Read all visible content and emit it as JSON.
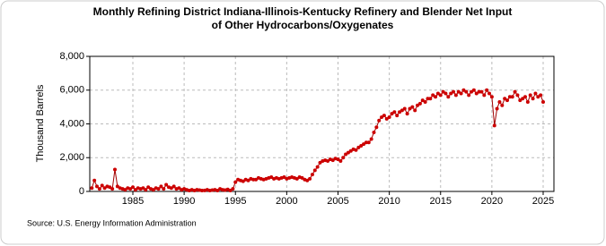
{
  "chart_data": {
    "type": "line",
    "title": "Monthly Refining District Indiana-Illinois-Kentucky Refinery and Blender Net Input of Other Hydrocarbons/Oxygenates",
    "y_label": "Thousand Barrels",
    "source": "Source: U.S. Energy Information Administration",
    "color": "#cc0000",
    "grid": true,
    "xlim": [
      1980.8,
      2026.05
    ],
    "xticks": [
      1985,
      1990,
      1995,
      2000,
      2005,
      2010,
      2015,
      2020,
      2025
    ],
    "ylim": [
      0,
      8000
    ],
    "yticks": [
      0,
      {
        "value": 2000,
        "label": "2,000"
      },
      {
        "value": 4000,
        "label": "4,000"
      },
      {
        "value": 6000,
        "label": "6,000"
      },
      {
        "value": 8000,
        "label": "8,000"
      }
    ],
    "x": [
      1981,
      1981.25,
      1981.5,
      1981.75,
      1982,
      1982.25,
      1982.5,
      1982.75,
      1983,
      1983.25,
      1983.5,
      1983.75,
      1984,
      1984.25,
      1984.5,
      1984.75,
      1985,
      1985.25,
      1985.5,
      1985.75,
      1986,
      1986.25,
      1986.5,
      1986.75,
      1987,
      1987.25,
      1987.5,
      1987.75,
      1988,
      1988.25,
      1988.5,
      1988.75,
      1989,
      1989.25,
      1989.5,
      1989.75,
      1990,
      1990.25,
      1990.5,
      1990.75,
      1991,
      1991.25,
      1991.5,
      1991.75,
      1992,
      1992.25,
      1992.5,
      1992.75,
      1993,
      1993.25,
      1993.5,
      1993.75,
      1994,
      1994.25,
      1994.5,
      1994.75,
      1995,
      1995.25,
      1995.5,
      1995.75,
      1996,
      1996.25,
      1996.5,
      1996.75,
      1997,
      1997.25,
      1997.5,
      1997.75,
      1998,
      1998.25,
      1998.5,
      1998.75,
      1999,
      1999.25,
      1999.5,
      1999.75,
      2000,
      2000.25,
      2000.5,
      2000.75,
      2001,
      2001.25,
      2001.5,
      2001.75,
      2002,
      2002.25,
      2002.5,
      2002.75,
      2003,
      2003.25,
      2003.5,
      2003.75,
      2004,
      2004.25,
      2004.5,
      2004.75,
      2005,
      2005.25,
      2005.5,
      2005.75,
      2006,
      2006.25,
      2006.5,
      2006.75,
      2007,
      2007.25,
      2007.5,
      2007.75,
      2008,
      2008.25,
      2008.5,
      2008.75,
      2009,
      2009.25,
      2009.5,
      2009.75,
      2010,
      2010.25,
      2010.5,
      2010.75,
      2011,
      2011.25,
      2011.5,
      2011.75,
      2012,
      2012.25,
      2012.5,
      2012.75,
      2013,
      2013.25,
      2013.5,
      2013.75,
      2014,
      2014.25,
      2014.5,
      2014.75,
      2015,
      2015.25,
      2015.5,
      2015.75,
      2016,
      2016.25,
      2016.5,
      2016.75,
      2017,
      2017.25,
      2017.5,
      2017.75,
      2018,
      2018.25,
      2018.5,
      2018.75,
      2019,
      2019.25,
      2019.5,
      2019.75,
      2020,
      2020.25,
      2020.5,
      2020.75,
      2021,
      2021.25,
      2021.5,
      2021.75,
      2022,
      2022.25,
      2022.5,
      2022.75,
      2023,
      2023.25,
      2023.5,
      2023.75,
      2024,
      2024.25,
      2024.5,
      2024.75,
      2025
    ],
    "values": [
      200,
      650,
      300,
      150,
      350,
      200,
      300,
      250,
      150,
      1300,
      300,
      200,
      150,
      100,
      200,
      150,
      250,
      100,
      200,
      150,
      200,
      100,
      250,
      150,
      100,
      200,
      150,
      300,
      150,
      400,
      250,
      200,
      300,
      150,
      200,
      100,
      150,
      100,
      50,
      100,
      50,
      100,
      80,
      50,
      60,
      100,
      50,
      80,
      100,
      50,
      150,
      100,
      80,
      120,
      50,
      150,
      550,
      700,
      650,
      600,
      700,
      650,
      750,
      700,
      700,
      800,
      750,
      700,
      750,
      800,
      850,
      750,
      800,
      750,
      800,
      850,
      750,
      800,
      850,
      800,
      750,
      850,
      800,
      700,
      650,
      750,
      1000,
      1250,
      1450,
      1700,
      1800,
      1850,
      1800,
      1900,
      1850,
      1950,
      1900,
      1800,
      2000,
      2200,
      2300,
      2400,
      2500,
      2450,
      2600,
      2700,
      2800,
      2900,
      2900,
      3100,
      3500,
      3800,
      4200,
      4400,
      4500,
      4300,
      4400,
      4600,
      4700,
      4500,
      4700,
      4800,
      4900,
      4600,
      4900,
      5000,
      4800,
      5100,
      5200,
      5400,
      5300,
      5500,
      5500,
      5700,
      5600,
      5800,
      5700,
      5900,
      5800,
      5600,
      5800,
      5900,
      5700,
      5900,
      5800,
      6000,
      5900,
      5700,
      5900,
      6000,
      5800,
      5900,
      5900,
      5700,
      6000,
      5800,
      5600,
      3900,
      4900,
      5300,
      5100,
      5500,
      5400,
      5600,
      5600,
      5900,
      5700,
      5400,
      5500,
      5600,
      5300,
      5700,
      5500,
      5800,
      5600,
      5700,
      5300
    ]
  }
}
